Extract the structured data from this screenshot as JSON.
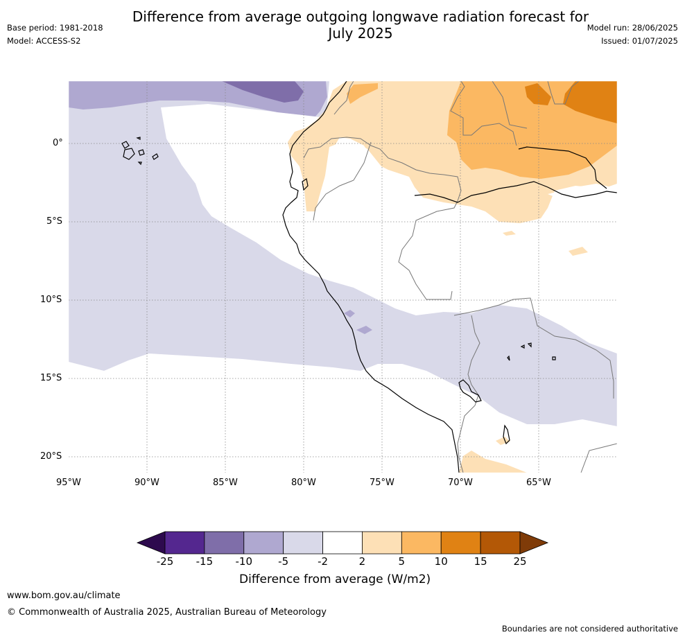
{
  "header": {
    "title_line1": "Difference from average outgoing longwave radiation forecast for",
    "title_line2": "July 2025",
    "base_period": "Base period: 1981-2018",
    "model": "Model: ACCESS-S2",
    "model_run": "Model run: 28/06/2025",
    "issued": "Issued: 01/07/2025"
  },
  "map": {
    "lat_labels": [
      "0°",
      "5°S",
      "10°S",
      "15°S",
      "20°S"
    ],
    "lon_labels": [
      "95°W",
      "90°W",
      "85°W",
      "80°W",
      "75°W",
      "70°W",
      "65°W"
    ]
  },
  "colorbar": {
    "ticks": [
      "-25",
      "-15",
      "-10",
      "-5",
      "-2",
      "2",
      "5",
      "10",
      "15",
      "25"
    ],
    "colors": [
      "#2d0a4e",
      "#54278f",
      "#7f6ea9",
      "#afa8d0",
      "#d9d9e9",
      "#ffffff",
      "#fde0b6",
      "#fbb862",
      "#e08214",
      "#b35806",
      "#7f3b08"
    ],
    "label": "Difference from average (W/m2)"
  },
  "footer": {
    "website": "www.bom.gov.au/climate",
    "copyright": "© Commonwealth of Australia 2025, Australian Bureau of Meteorology",
    "disclaimer": "Boundaries are not considered authoritative"
  }
}
